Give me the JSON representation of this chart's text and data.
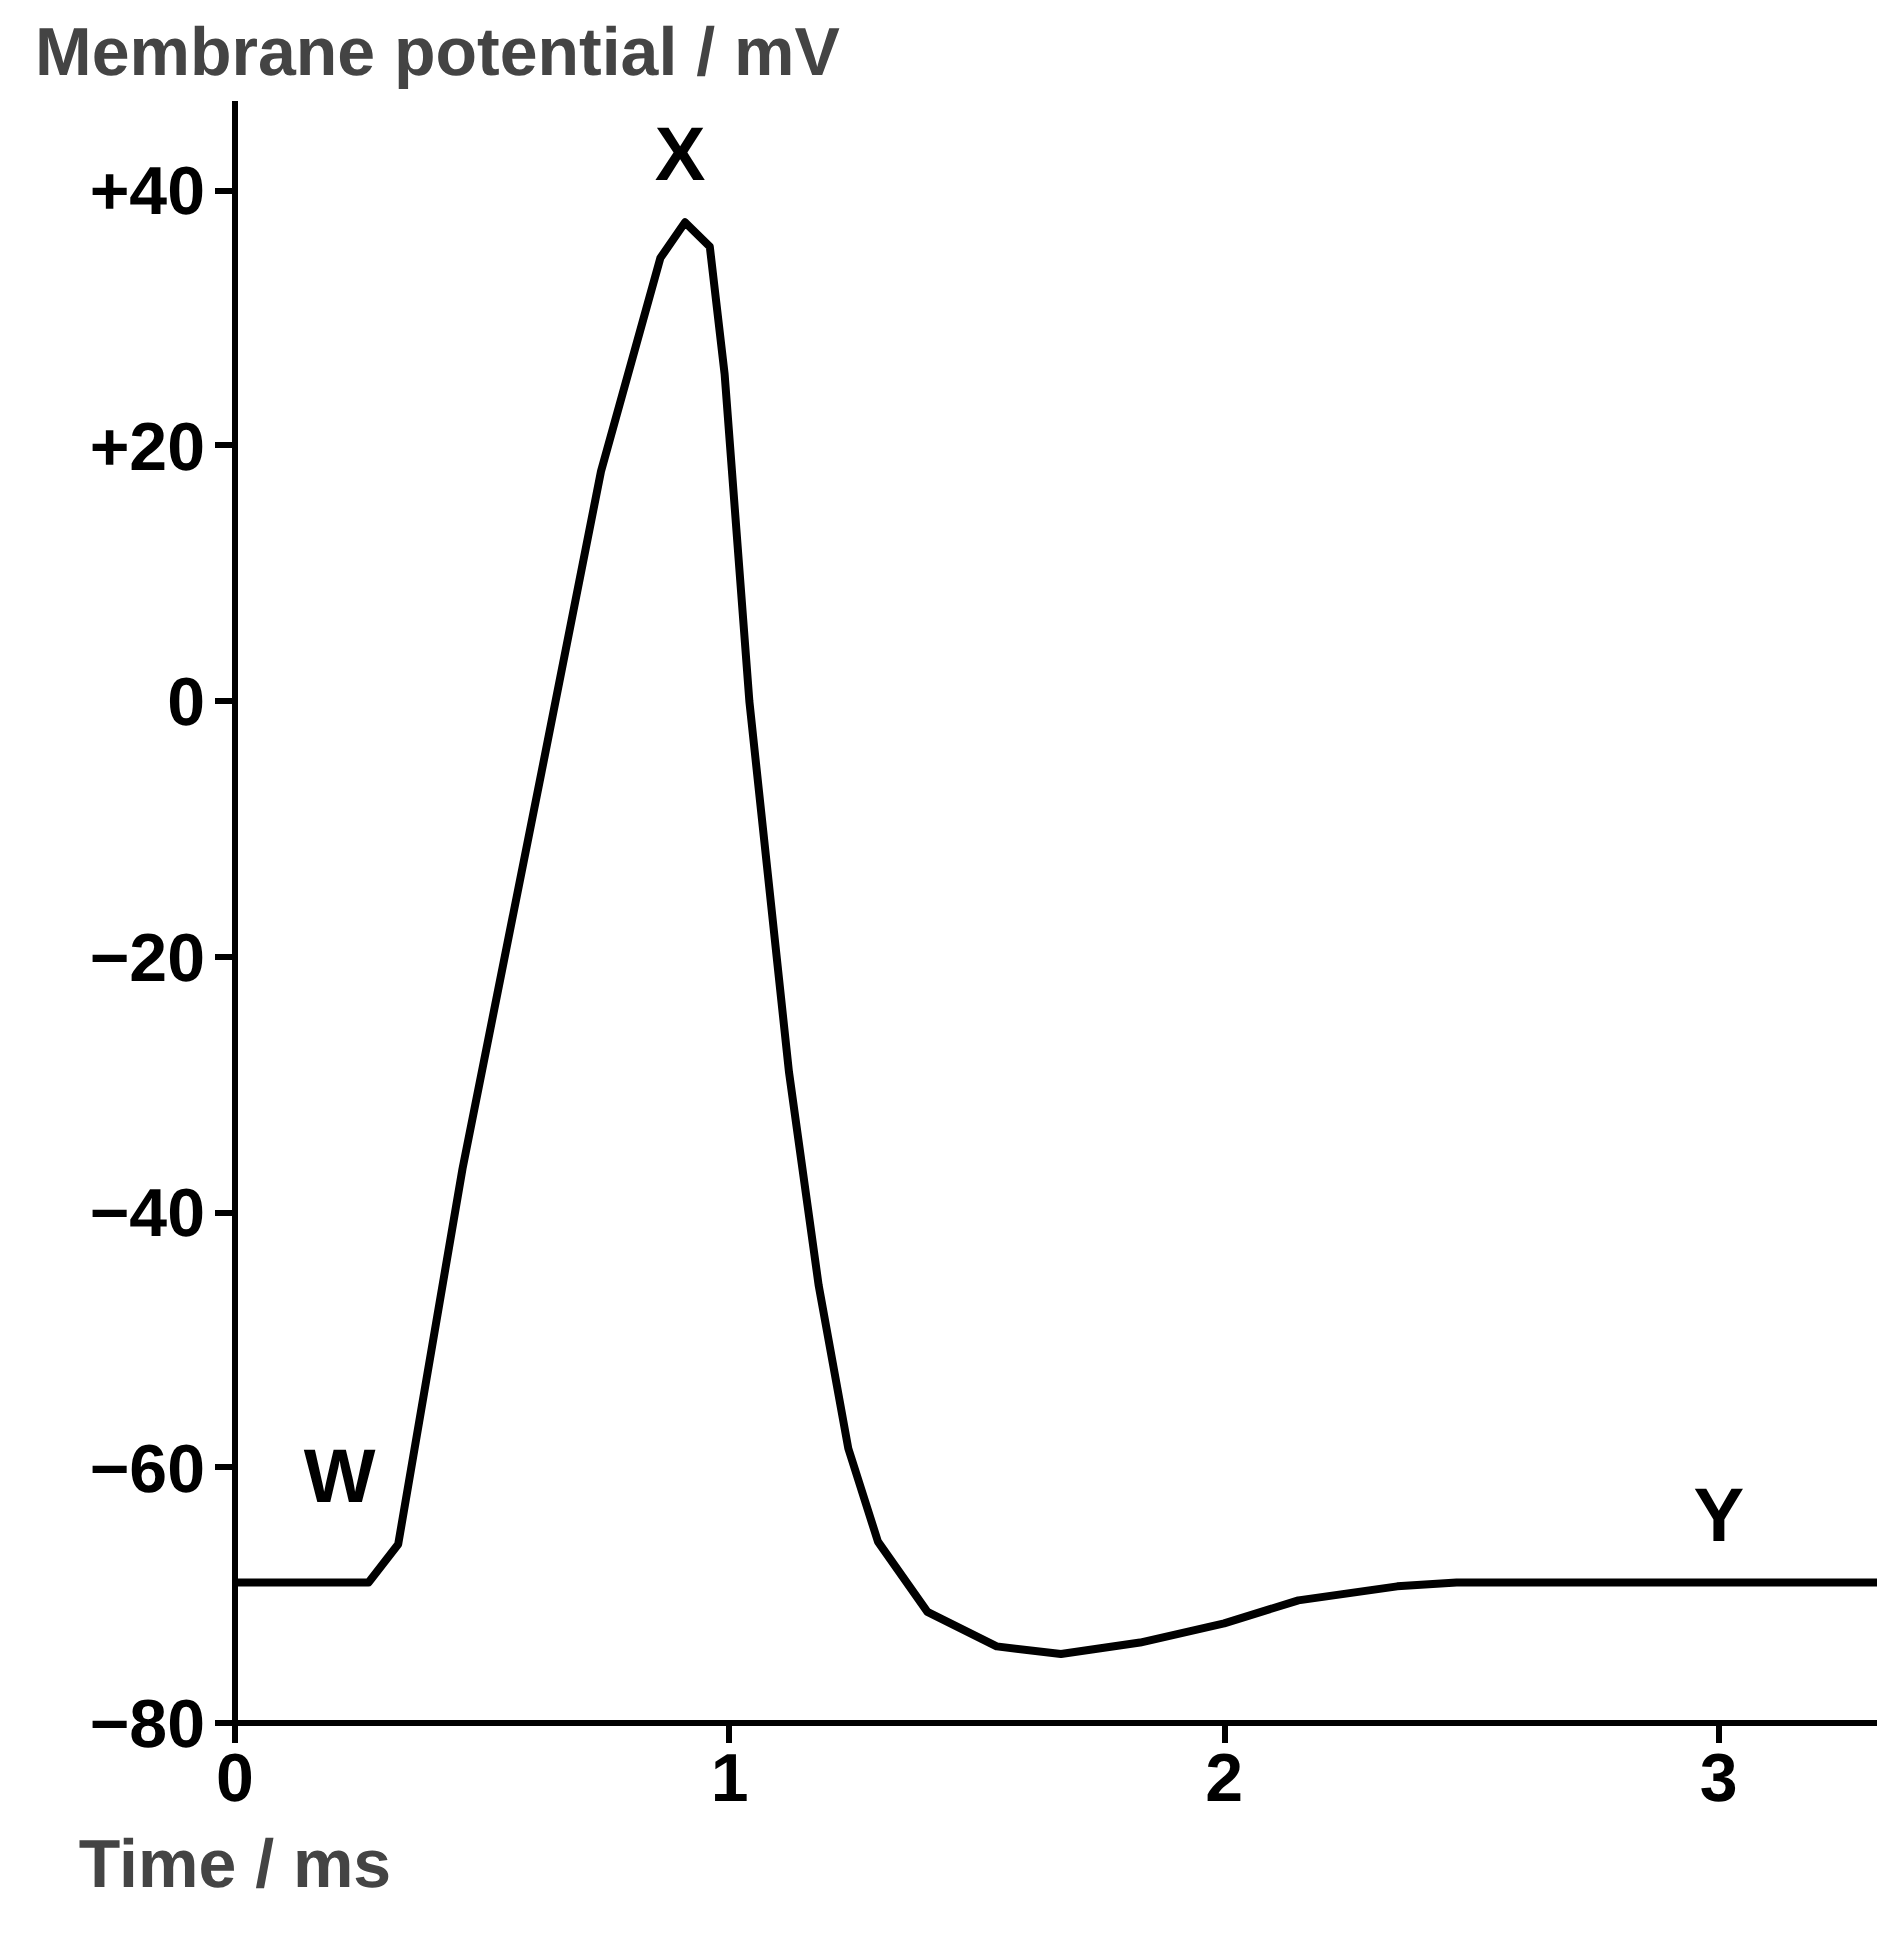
{
  "chart_data": {
    "type": "line",
    "ylabel": "Membrane potential / mV",
    "xlabel": "Time / ms",
    "x": [
      0,
      0.27,
      0.33,
      0.46,
      0.62,
      0.74,
      0.86,
      0.91,
      0.96,
      0.99,
      1.04,
      1.12,
      1.18,
      1.24,
      1.3,
      1.4,
      1.54,
      1.67,
      1.83,
      2.0,
      2.15,
      2.35,
      2.47,
      3.32
    ],
    "series": [
      {
        "color": "#000000",
        "values": [
          -69,
          -69,
          -66,
          -36.6,
          -5.5,
          18,
          34.7,
          37.5,
          35.6,
          25.6,
          0,
          -29,
          -45.7,
          -58.5,
          -65.8,
          -71.3,
          -74,
          -74.6,
          -73.7,
          -72.2,
          -70.4,
          -69.3,
          -69,
          -69
        ]
      }
    ],
    "xlim": [
      0,
      3.32
    ],
    "ylim": [
      -80,
      47
    ],
    "xticks": [
      0,
      1,
      2,
      3
    ],
    "yticks": [
      {
        "value": 40,
        "label": "+40"
      },
      {
        "value": 20,
        "label": "+20"
      },
      0,
      {
        "value": -20,
        "label": "−20"
      },
      {
        "value": -40,
        "label": "−40"
      },
      {
        "value": -60,
        "label": "−60"
      },
      {
        "value": -80,
        "label": "−80"
      }
    ],
    "annotations": [
      {
        "text": "W",
        "x": 0.3,
        "y": -66
      },
      {
        "text": "X",
        "x": 0.9,
        "y": 37.5
      },
      {
        "text": "Y",
        "x": 3.0,
        "y": -69
      }
    ],
    "grid": false,
    "marker": "none",
    "line_style": "solid"
  }
}
